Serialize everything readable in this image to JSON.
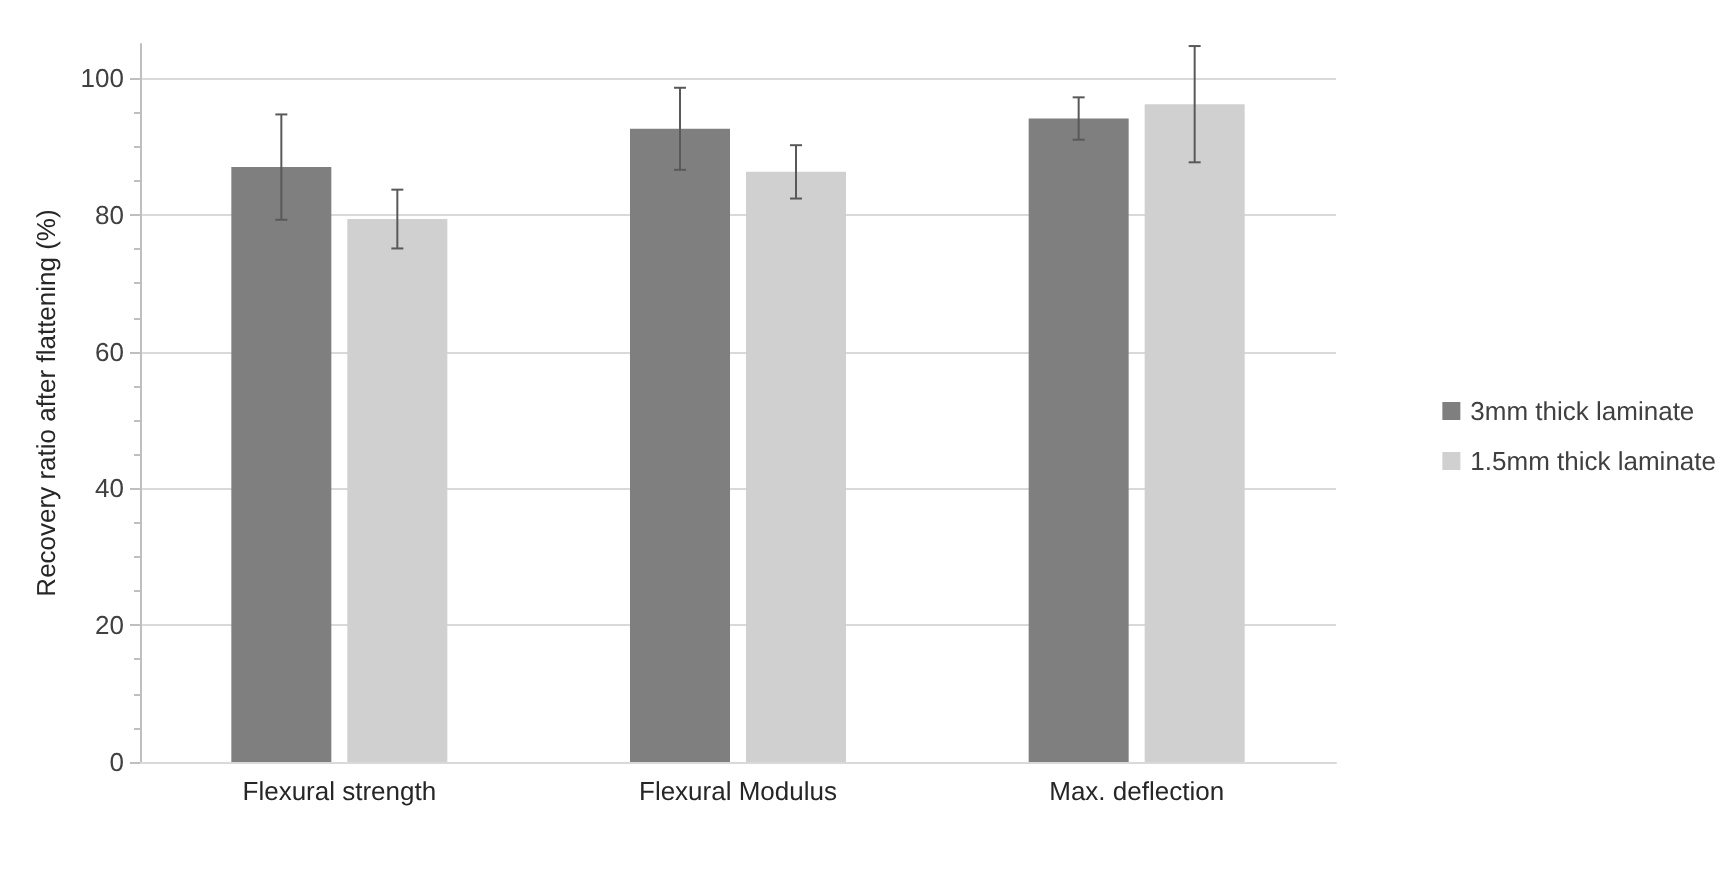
{
  "chart_data": {
    "type": "bar",
    "ylabel": "Recovery ratio after flattening (%)",
    "categories": [
      "Flexural strength",
      "Flexural Modulus",
      "Max. deflection"
    ],
    "series": [
      {
        "name": "3mm thick laminate",
        "color": "#7f7f7f",
        "values": [
          87.0,
          92.6,
          94.1
        ],
        "errors": [
          7.7,
          6.0,
          3.1
        ]
      },
      {
        "name": "1.5mm thick laminate",
        "color": "#d0d0d0",
        "values": [
          79.4,
          86.3,
          96.2
        ],
        "errors": [
          4.3,
          3.9,
          8.5
        ]
      }
    ],
    "ylim": [
      0,
      105
    ],
    "yticks": [
      0,
      20,
      40,
      60,
      80,
      100
    ],
    "grid": "y",
    "legend": "right"
  }
}
